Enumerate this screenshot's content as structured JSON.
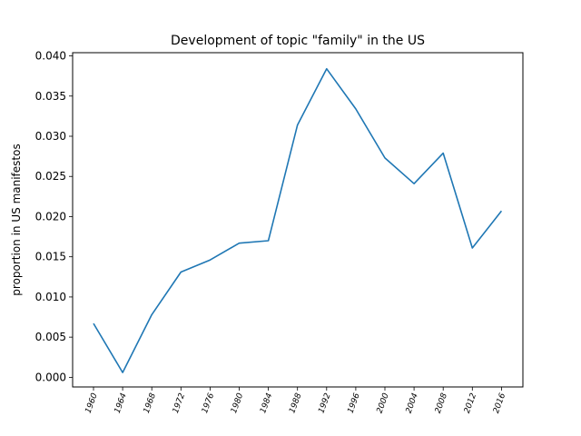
{
  "chart_data": {
    "type": "line",
    "title": "Development of topic \"family\" in the US",
    "xlabel": "",
    "ylabel": "proportion in US manifestos",
    "categories": [
      "1960",
      "1964",
      "1968",
      "1972",
      "1976",
      "1980",
      "1984",
      "1988",
      "1992",
      "1996",
      "2000",
      "2004",
      "2008",
      "2012",
      "2016"
    ],
    "series": [
      {
        "values": [
          0.0067,
          0.0006,
          0.0078,
          0.0131,
          0.0146,
          0.0167,
          0.017,
          0.0314,
          0.0384,
          0.0334,
          0.0273,
          0.0241,
          0.0279,
          0.0161,
          0.0207
        ],
        "color": "#1f77b4"
      }
    ],
    "yticks": [
      "0.000",
      "0.005",
      "0.010",
      "0.015",
      "0.020",
      "0.025",
      "0.030",
      "0.035",
      "0.040"
    ],
    "ylim": [
      -0.0012,
      0.0404
    ],
    "grid": false,
    "legend": "none"
  }
}
